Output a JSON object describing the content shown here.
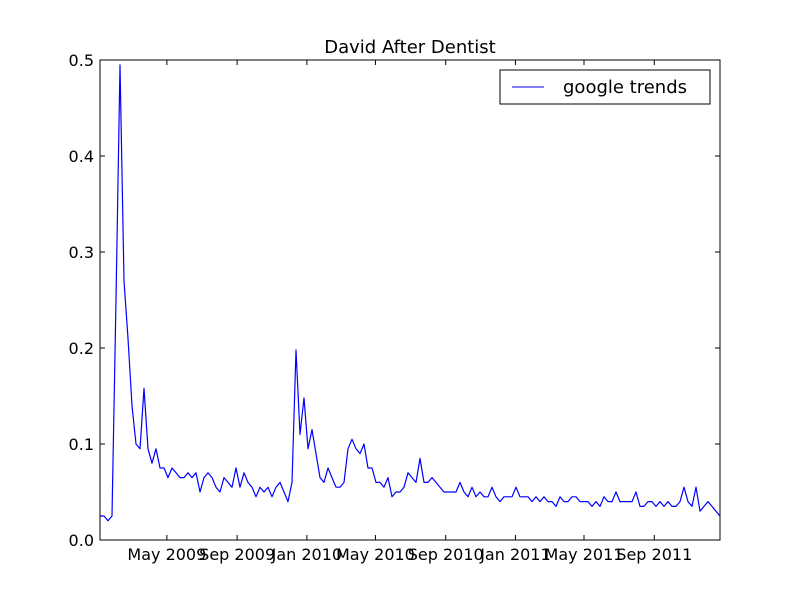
{
  "chart_data": {
    "type": "line",
    "title": "David After Dentist",
    "xlabel": "",
    "ylabel": "",
    "x_start": "2009-01-04",
    "x_end": "2011-12-25",
    "xtick_labels": [
      "May 2009",
      "Sep 2009",
      "Jan 2010",
      "May 2010",
      "Sep 2010",
      "Jan 2011",
      "May 2011",
      "Sep 2011"
    ],
    "xtick_dates": [
      "2009-05-01",
      "2009-09-01",
      "2010-01-01",
      "2010-05-01",
      "2010-09-01",
      "2011-01-01",
      "2011-05-01",
      "2011-09-01"
    ],
    "ylim": [
      0,
      0.5
    ],
    "yticks": [
      "0.0",
      "0.1",
      "0.2",
      "0.3",
      "0.4",
      "0.5"
    ],
    "yticks_values": [
      0,
      0.1,
      0.2,
      0.3,
      0.4,
      0.5
    ],
    "grid": false,
    "legend_position": "top-right",
    "series": [
      {
        "name": "google trends",
        "color": "#0000ff",
        "values": [
          0.025,
          0.025,
          0.02,
          0.025,
          0.25,
          0.495,
          0.27,
          0.21,
          0.14,
          0.1,
          0.095,
          0.158,
          0.095,
          0.08,
          0.095,
          0.075,
          0.075,
          0.065,
          0.075,
          0.07,
          0.065,
          0.065,
          0.07,
          0.065,
          0.07,
          0.05,
          0.065,
          0.07,
          0.065,
          0.055,
          0.05,
          0.065,
          0.06,
          0.055,
          0.075,
          0.055,
          0.07,
          0.06,
          0.055,
          0.045,
          0.055,
          0.05,
          0.055,
          0.045,
          0.055,
          0.06,
          0.05,
          0.04,
          0.06,
          0.198,
          0.11,
          0.148,
          0.095,
          0.115,
          0.09,
          0.065,
          0.06,
          0.075,
          0.065,
          0.055,
          0.055,
          0.06,
          0.095,
          0.105,
          0.095,
          0.09,
          0.1,
          0.075,
          0.075,
          0.06,
          0.06,
          0.055,
          0.065,
          0.045,
          0.05,
          0.05,
          0.055,
          0.07,
          0.065,
          0.06,
          0.085,
          0.06,
          0.06,
          0.065,
          0.06,
          0.055,
          0.05,
          0.05,
          0.05,
          0.05,
          0.06,
          0.05,
          0.045,
          0.055,
          0.045,
          0.05,
          0.045,
          0.045,
          0.055,
          0.045,
          0.04,
          0.045,
          0.045,
          0.045,
          0.055,
          0.045,
          0.045,
          0.045,
          0.04,
          0.045,
          0.04,
          0.045,
          0.04,
          0.04,
          0.035,
          0.045,
          0.04,
          0.04,
          0.045,
          0.045,
          0.04,
          0.04,
          0.04,
          0.035,
          0.04,
          0.035,
          0.045,
          0.04,
          0.04,
          0.05,
          0.04,
          0.04,
          0.04,
          0.04,
          0.05,
          0.035,
          0.035,
          0.04,
          0.04,
          0.035,
          0.04,
          0.035,
          0.04,
          0.035,
          0.035,
          0.04,
          0.055,
          0.04,
          0.035,
          0.055,
          0.03,
          0.035,
          0.04,
          0.035,
          0.03,
          0.025
        ]
      }
    ]
  }
}
